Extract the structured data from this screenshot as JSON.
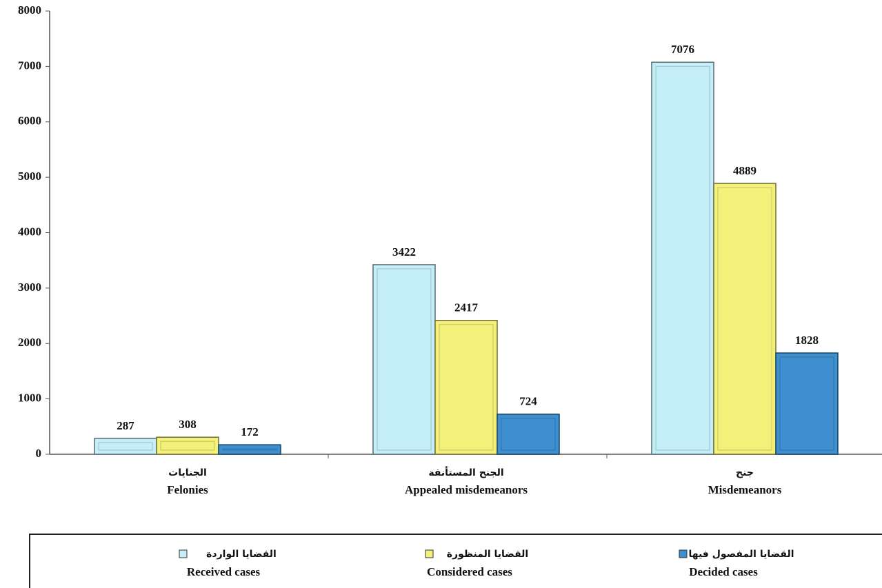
{
  "chart_data": {
    "type": "bar",
    "categories": [
      "Felonies",
      "Appealed misdemeanors",
      "Misdemeanors"
    ],
    "categories_ar": [
      "الجنايات",
      "الجنح المستأنفة",
      "جنح"
    ],
    "series": [
      {
        "name": "Received cases",
        "name_ar": "القضايا الواردة",
        "color": "#c4eef8",
        "values": [
          287,
          3422,
          7076
        ]
      },
      {
        "name": "Considered cases",
        "name_ar": "القضايا المنظورة",
        "color": "#f4f17a",
        "values": [
          308,
          2417,
          4889
        ]
      },
      {
        "name": "Decided cases",
        "name_ar": "القضايا المفصول فيها",
        "color": "#3d8fcf",
        "values": [
          172,
          724,
          1828
        ]
      }
    ],
    "ylim": [
      0,
      8000
    ],
    "yticks": [
      0,
      1000,
      2000,
      3000,
      4000,
      5000,
      6000,
      7000,
      8000
    ],
    "grid": false
  }
}
